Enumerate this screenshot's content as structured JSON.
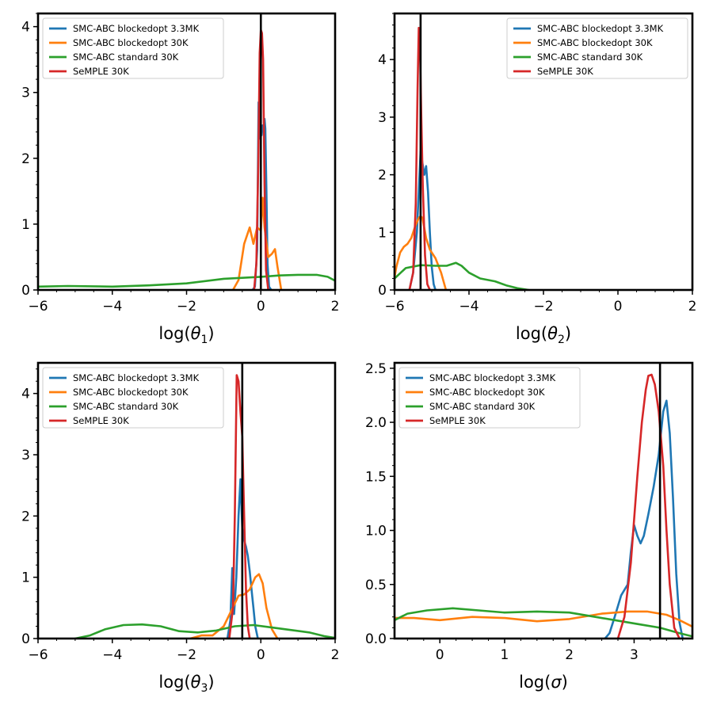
{
  "colors": {
    "blockedopt_3_3MK": "#1f77b4",
    "blockedopt_30K": "#ff7f0e",
    "standard_30K": "#2ca02c",
    "semple_30K": "#d62728",
    "true_value": "#000000"
  },
  "chart_data": [
    {
      "type": "line",
      "xlabel_main": "log(",
      "xlabel_sym": "θ",
      "xlabel_sub": "1",
      "xlabel_tail": ")",
      "ylabel": "",
      "xlim": [
        -6,
        2
      ],
      "ylim": [
        0,
        4.2
      ],
      "xticks": [
        -6,
        -4,
        -2,
        0,
        2
      ],
      "yticks": [
        0,
        1,
        2,
        3,
        4
      ],
      "true_value": 0.0,
      "legend_position": "top-left",
      "series": [
        {
          "name": "SMC-ABC blockedopt 3.3MK",
          "color_key": "blockedopt_3_3MK",
          "x": [
            -0.22,
            -0.16,
            -0.1,
            -0.06,
            -0.03,
            0.0,
            0.02,
            0.05,
            0.08,
            0.1,
            0.12,
            0.15,
            0.18,
            0.22,
            0.28
          ],
          "y": [
            0.0,
            0.05,
            0.6,
            2.85,
            2.3,
            2.5,
            2.35,
            2.5,
            2.45,
            2.6,
            2.45,
            1.5,
            0.4,
            0.05,
            0.0
          ]
        },
        {
          "name": "SMC-ABC blockedopt 30K",
          "color_key": "blockedopt_30K",
          "x": [
            -0.75,
            -0.6,
            -0.45,
            -0.3,
            -0.2,
            -0.1,
            0.0,
            0.05,
            0.1,
            0.2,
            0.3,
            0.38,
            0.45,
            0.55
          ],
          "y": [
            0.0,
            0.15,
            0.7,
            0.95,
            0.7,
            0.95,
            0.9,
            1.4,
            0.95,
            0.5,
            0.55,
            0.62,
            0.35,
            0.0
          ]
        },
        {
          "name": "SMC-ABC standard 30K",
          "color_key": "standard_30K",
          "x": [
            -6,
            -5.2,
            -4,
            -3,
            -2,
            -1,
            0,
            0.5,
            1,
            1.5,
            1.8,
            2
          ],
          "y": [
            0.05,
            0.06,
            0.05,
            0.07,
            0.1,
            0.17,
            0.2,
            0.22,
            0.23,
            0.23,
            0.2,
            0.14
          ]
        },
        {
          "name": "SeMPLE 30K",
          "color_key": "semple_30K",
          "x": [
            -0.18,
            -0.12,
            -0.07,
            -0.03,
            0.0,
            0.03,
            0.06,
            0.1,
            0.14,
            0.2
          ],
          "y": [
            0.0,
            0.4,
            1.9,
            3.6,
            3.95,
            3.9,
            3.5,
            1.6,
            0.3,
            0.0
          ]
        }
      ]
    },
    {
      "type": "line",
      "xlabel_main": "log(",
      "xlabel_sym": "θ",
      "xlabel_sub": "2",
      "xlabel_tail": ")",
      "ylabel": "",
      "xlim": [
        -6,
        2
      ],
      "ylim": [
        0,
        4.8
      ],
      "xticks": [
        -6,
        -4,
        -2,
        0,
        2
      ],
      "yticks": [
        0,
        1,
        2,
        3,
        4
      ],
      "true_value": -5.3,
      "legend_position": "top-right",
      "series": [
        {
          "name": "SMC-ABC blockedopt 3.3MK",
          "color_key": "blockedopt_3_3MK",
          "x": [
            -5.6,
            -5.5,
            -5.4,
            -5.3,
            -5.2,
            -5.15,
            -5.1,
            -5.05,
            -5.0,
            -4.95,
            -4.9
          ],
          "y": [
            0.0,
            0.3,
            1.0,
            2.4,
            2.0,
            2.15,
            1.7,
            1.0,
            0.4,
            0.1,
            0.0
          ]
        },
        {
          "name": "SMC-ABC blockedopt 30K",
          "color_key": "blockedopt_30K",
          "x": [
            -6.0,
            -5.95,
            -5.85,
            -5.75,
            -5.65,
            -5.55,
            -5.45,
            -5.35,
            -5.3,
            -5.25,
            -5.15,
            -5.05,
            -4.9,
            -4.75,
            -4.62
          ],
          "y": [
            0.22,
            0.4,
            0.65,
            0.75,
            0.8,
            0.9,
            1.1,
            1.25,
            1.28,
            1.25,
            0.9,
            0.7,
            0.55,
            0.3,
            0.0
          ]
        },
        {
          "name": "SMC-ABC standard 30K",
          "color_key": "standard_30K",
          "x": [
            -6.0,
            -5.7,
            -5.3,
            -4.9,
            -4.6,
            -4.35,
            -4.2,
            -4.0,
            -3.7,
            -3.3,
            -3.0,
            -2.7,
            -2.4
          ],
          "y": [
            0.2,
            0.38,
            0.43,
            0.42,
            0.42,
            0.47,
            0.42,
            0.3,
            0.2,
            0.15,
            0.08,
            0.03,
            0.0
          ]
        },
        {
          "name": "SeMPLE 30K",
          "color_key": "semple_30K",
          "x": [
            -5.6,
            -5.5,
            -5.43,
            -5.38,
            -5.35,
            -5.32,
            -5.28,
            -5.24,
            -5.18,
            -5.12,
            -5.05
          ],
          "y": [
            0.0,
            0.3,
            1.5,
            3.5,
            4.55,
            4.3,
            3.0,
            1.8,
            0.6,
            0.1,
            0.0
          ]
        }
      ]
    },
    {
      "type": "line",
      "xlabel_main": "log(",
      "xlabel_sym": "θ",
      "xlabel_sub": "3",
      "xlabel_tail": ")",
      "ylabel": "",
      "xlim": [
        -6,
        2
      ],
      "ylim": [
        0,
        4.5
      ],
      "xticks": [
        -6,
        -4,
        -2,
        0,
        2
      ],
      "yticks": [
        0,
        1,
        2,
        3,
        4
      ],
      "true_value": -0.5,
      "legend_position": "top-left",
      "series": [
        {
          "name": "SMC-ABC blockedopt 3.3MK",
          "color_key": "blockedopt_3_3MK",
          "x": [
            -0.9,
            -0.82,
            -0.77,
            -0.72,
            -0.66,
            -0.6,
            -0.55,
            -0.5,
            -0.45,
            -0.4,
            -0.35,
            -0.3,
            -0.25,
            -0.2,
            -0.15,
            -0.08
          ],
          "y": [
            0.0,
            0.3,
            1.15,
            0.4,
            1.0,
            2.0,
            2.6,
            1.8,
            1.6,
            1.5,
            1.35,
            1.1,
            0.8,
            0.5,
            0.2,
            0.0
          ]
        },
        {
          "name": "SMC-ABC blockedopt 30K",
          "color_key": "blockedopt_30K",
          "x": [
            -1.9,
            -1.6,
            -1.3,
            -1.0,
            -0.8,
            -0.6,
            -0.45,
            -0.3,
            -0.15,
            -0.05,
            0.05,
            0.15,
            0.3,
            0.45
          ],
          "y": [
            0.0,
            0.05,
            0.05,
            0.2,
            0.45,
            0.7,
            0.72,
            0.8,
            1.0,
            1.05,
            0.9,
            0.5,
            0.15,
            0.0
          ]
        },
        {
          "name": "SMC-ABC standard 30K",
          "color_key": "standard_30K",
          "x": [
            -5.0,
            -4.6,
            -4.2,
            -3.7,
            -3.2,
            -2.7,
            -2.2,
            -1.7,
            -1.2,
            -0.7,
            -0.2,
            0.3,
            0.8,
            1.3,
            1.7,
            2.0
          ],
          "y": [
            0.0,
            0.05,
            0.15,
            0.22,
            0.23,
            0.2,
            0.12,
            0.1,
            0.13,
            0.2,
            0.22,
            0.18,
            0.14,
            0.1,
            0.04,
            0.01
          ]
        },
        {
          "name": "SeMPLE 30K",
          "color_key": "semple_30K",
          "x": [
            -0.85,
            -0.75,
            -0.7,
            -0.65,
            -0.6,
            -0.55,
            -0.5,
            -0.45,
            -0.4,
            -0.35,
            -0.3
          ],
          "y": [
            0.0,
            0.5,
            2.0,
            4.3,
            4.2,
            3.7,
            3.3,
            2.0,
            0.8,
            0.2,
            0.0
          ]
        }
      ]
    },
    {
      "type": "line",
      "xlabel_main": "log(",
      "xlabel_sym": "σ",
      "xlabel_sub": "",
      "xlabel_tail": ")",
      "ylabel": "",
      "xlim": [
        -0.7,
        3.9
      ],
      "ylim": [
        0,
        2.55
      ],
      "xticks": [
        0,
        1,
        2,
        3
      ],
      "yticks": [
        0.0,
        0.5,
        1.0,
        1.5,
        2.0,
        2.5
      ],
      "ytick_labels": [
        "0.0",
        "0.5",
        "1.0",
        "1.5",
        "2.0",
        "2.5"
      ],
      "true_value": 3.4,
      "legend_position": "top-left",
      "series": [
        {
          "name": "SMC-ABC blockedopt 3.3MK",
          "color_key": "blockedopt_3_3MK",
          "x": [
            2.55,
            2.62,
            2.7,
            2.8,
            2.9,
            2.95,
            3.0,
            3.05,
            3.1,
            3.15,
            3.22,
            3.3,
            3.38,
            3.45,
            3.5,
            3.55,
            3.6,
            3.65,
            3.7,
            3.75
          ],
          "y": [
            0.0,
            0.05,
            0.2,
            0.4,
            0.5,
            0.8,
            1.05,
            0.95,
            0.88,
            0.95,
            1.15,
            1.4,
            1.7,
            2.1,
            2.2,
            1.9,
            1.3,
            0.6,
            0.15,
            0.0
          ]
        },
        {
          "name": "SMC-ABC blockedopt 30K",
          "color_key": "blockedopt_30K",
          "x": [
            -0.7,
            -0.4,
            0.0,
            0.5,
            1.0,
            1.5,
            2.0,
            2.5,
            2.9,
            3.2,
            3.5,
            3.7,
            3.9
          ],
          "y": [
            0.19,
            0.19,
            0.17,
            0.2,
            0.19,
            0.16,
            0.18,
            0.23,
            0.25,
            0.25,
            0.22,
            0.17,
            0.11
          ]
        },
        {
          "name": "SMC-ABC standard 30K",
          "color_key": "standard_30K",
          "x": [
            -0.7,
            -0.5,
            -0.2,
            0.2,
            0.6,
            1.0,
            1.5,
            2.0,
            2.4,
            2.8,
            3.1,
            3.4,
            3.7,
            3.9
          ],
          "y": [
            0.17,
            0.23,
            0.26,
            0.28,
            0.26,
            0.24,
            0.25,
            0.24,
            0.2,
            0.16,
            0.13,
            0.1,
            0.05,
            0.02
          ]
        },
        {
          "name": "SeMPLE 30K",
          "color_key": "semple_30K",
          "x": [
            2.75,
            2.85,
            2.95,
            3.05,
            3.12,
            3.18,
            3.22,
            3.27,
            3.32,
            3.38,
            3.45,
            3.5,
            3.55,
            3.62,
            3.7
          ],
          "y": [
            0.0,
            0.2,
            0.7,
            1.5,
            2.0,
            2.3,
            2.43,
            2.44,
            2.35,
            2.1,
            1.6,
            1.0,
            0.5,
            0.1,
            0.0
          ]
        }
      ]
    }
  ]
}
